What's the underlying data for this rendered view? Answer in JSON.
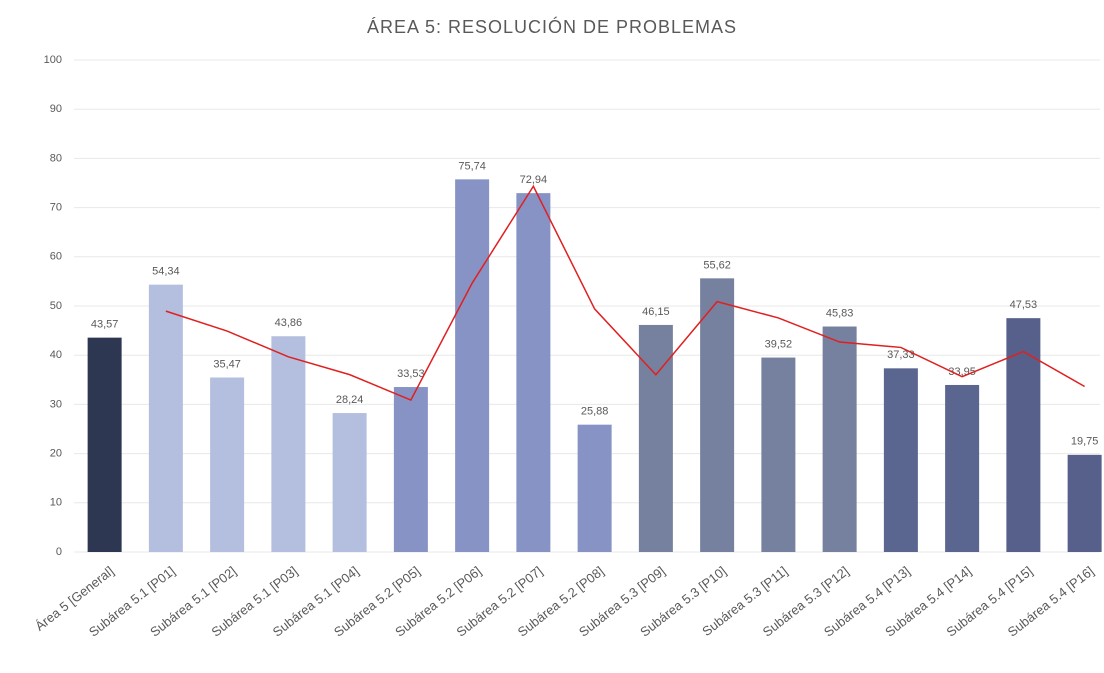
{
  "chart_data": {
    "type": "bar",
    "title": "ÁREA 5: RESOLUCIÓN DE PROBLEMAS",
    "categories": [
      "Área 5 [General]",
      "Subárea 5.1 [P01]",
      "Subárea 5.1 [P02]",
      "Subárea 5.1 [P03]",
      "Subárea 5.1 [P04]",
      "Subárea 5.2 [P05]",
      "Subárea 5.2 [P06]",
      "Subárea 5.2 [P07]",
      "Subárea 5.2 [P08]",
      "Subárea 5.3 [P09]",
      "Subárea 5.3 [P10]",
      "Subárea 5.3 [P11]",
      "Subárea 5.3 [P12]",
      "Subárea 5.4 [P13]",
      "Subárea 5.4 [P14]",
      "Subárea 5.4 [P15]",
      "Subárea 5.4 [P16]"
    ],
    "values": [
      43.57,
      54.34,
      35.47,
      43.86,
      28.24,
      33.53,
      75.74,
      72.94,
      25.88,
      46.15,
      55.62,
      39.52,
      45.83,
      37.33,
      33.95,
      47.53,
      19.75
    ],
    "value_labels": [
      "43,57",
      "54,34",
      "35,47",
      "43,86",
      "28,24",
      "33,53",
      "75,74",
      "72,94",
      "25,88",
      "46,15",
      "55,62",
      "39,52",
      "45,83",
      "37,33",
      "33,95",
      "47,53",
      "19,75"
    ],
    "colors": [
      "#2e3752",
      "#b4bedf",
      "#b4bedf",
      "#b4bedf",
      "#b4bedf",
      "#8793c5",
      "#8793c5",
      "#8793c5",
      "#8793c5",
      "#76809f",
      "#76809f",
      "#76809f",
      "#76809f",
      "#5a6590",
      "#5a6590",
      "#56608a",
      "#56608a"
    ],
    "trendline": {
      "color": "#e02020",
      "values": [
        null,
        48.96,
        44.91,
        39.67,
        36.05,
        30.89,
        54.64,
        74.34,
        49.41,
        36.02,
        50.89,
        47.57,
        42.68,
        41.58,
        35.64,
        40.74,
        33.64
      ]
    },
    "ylim": [
      0,
      100
    ],
    "yticks": [
      0,
      10,
      20,
      30,
      40,
      50,
      60,
      70,
      80,
      90,
      100
    ],
    "grid": true
  }
}
